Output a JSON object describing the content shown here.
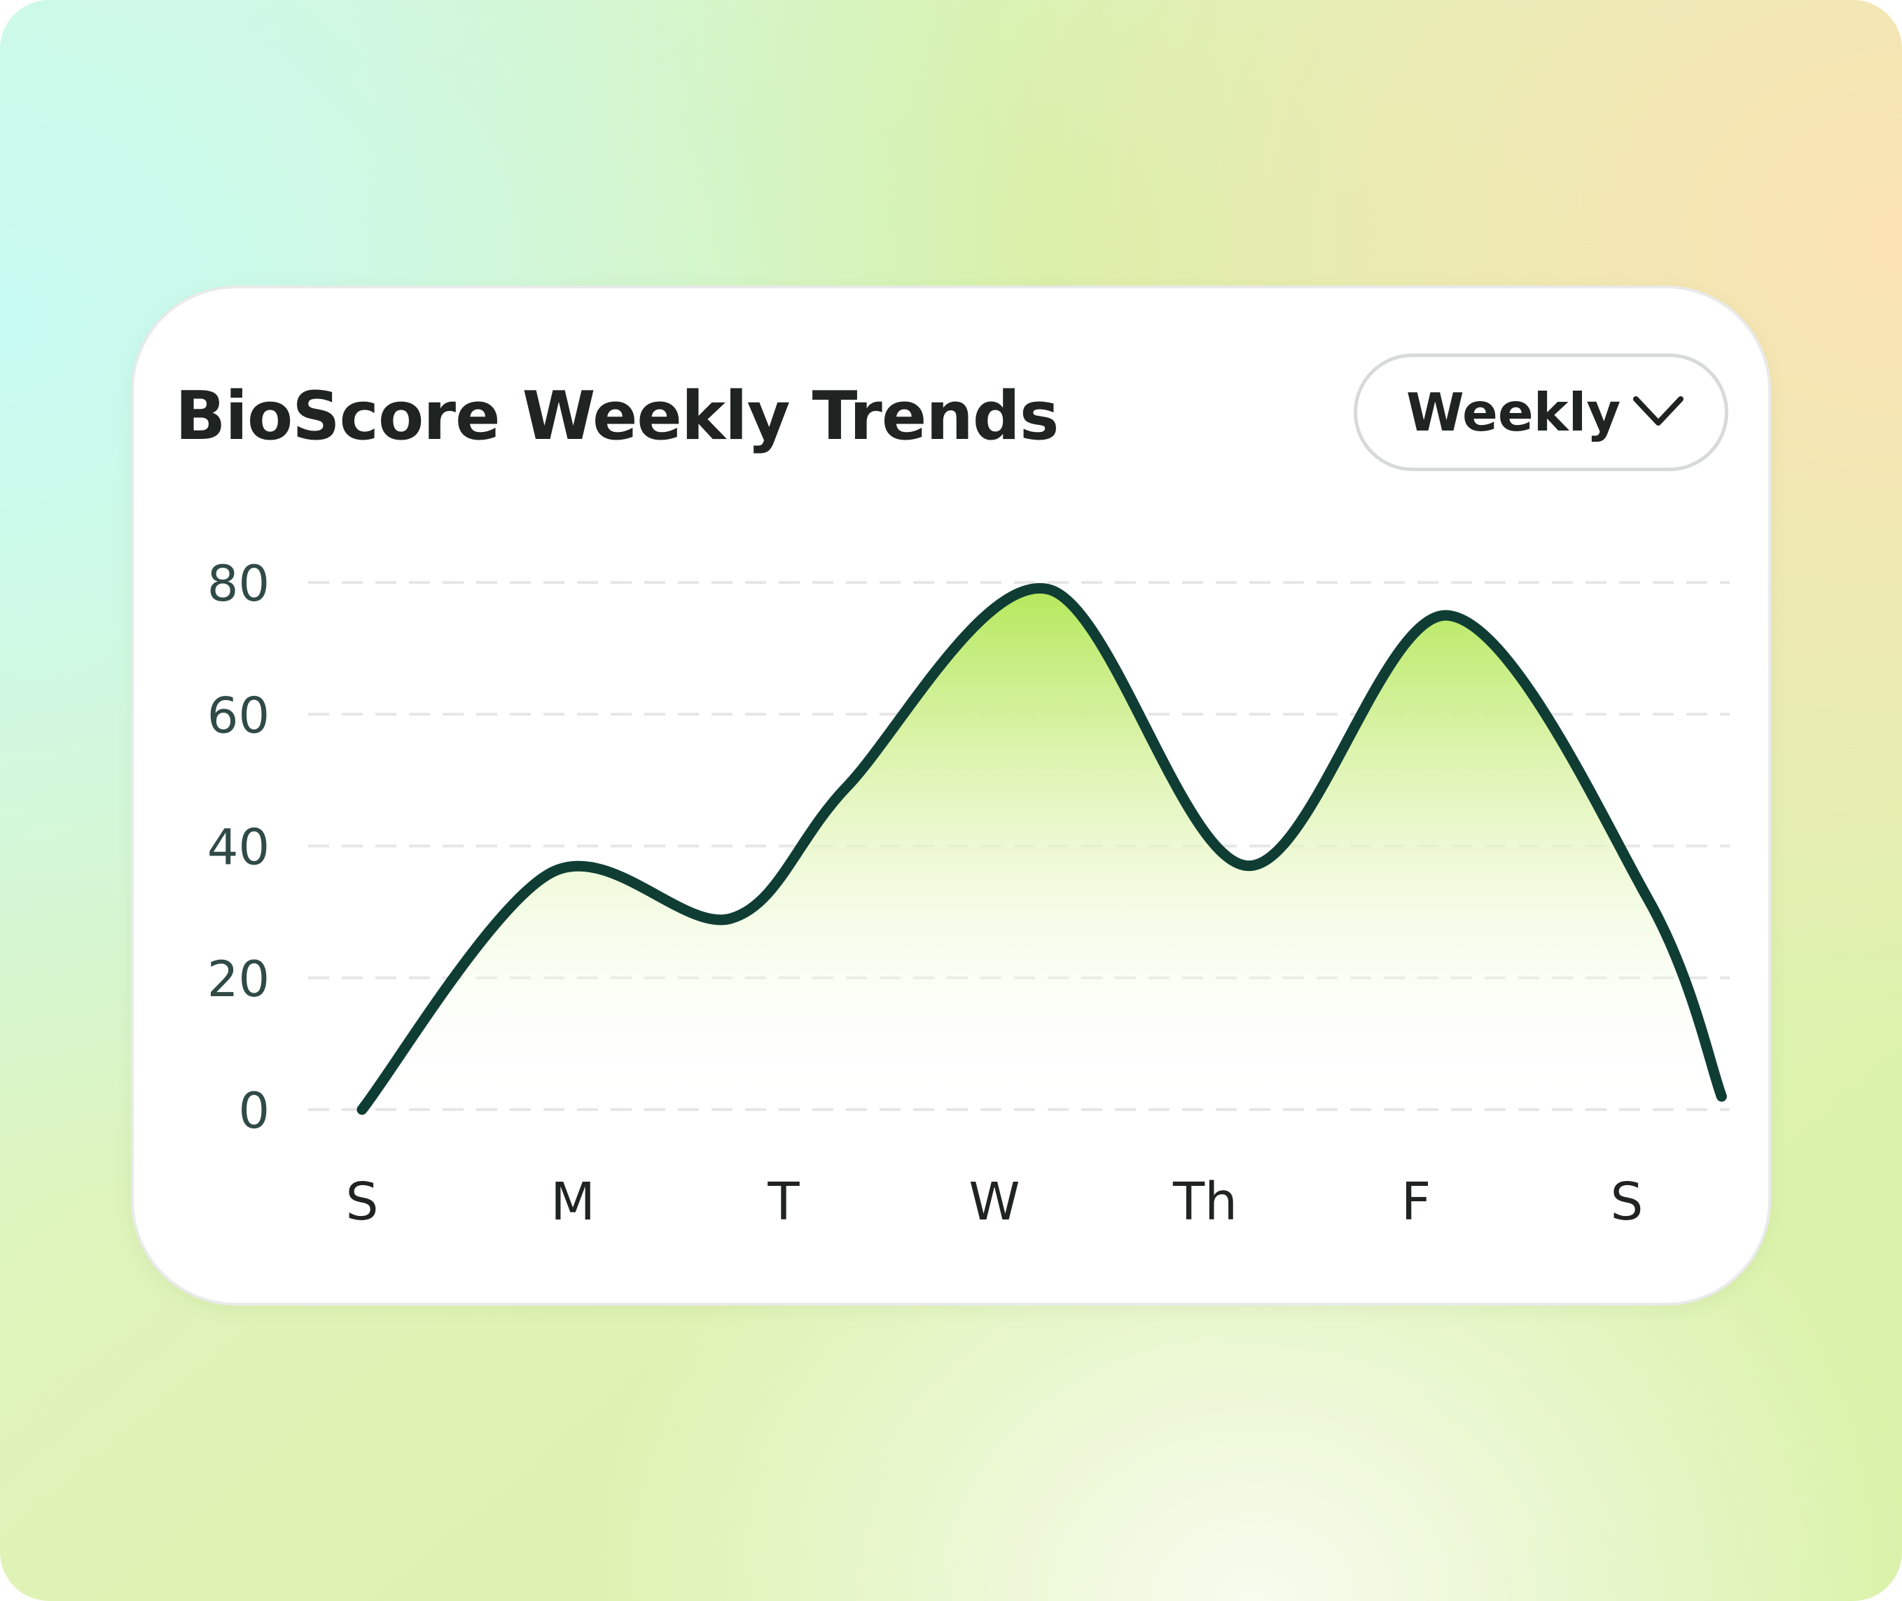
{
  "card": {
    "title": "BioScore Weekly Trends",
    "period_selector": {
      "selected": "Weekly",
      "icon": "chevron-down-icon"
    }
  },
  "colors": {
    "line": "#0f3d34",
    "fill_top": "#b5e85b",
    "grid": "#e6e6e6"
  },
  "chart_data": {
    "type": "area",
    "title": "",
    "xlabel": "",
    "ylabel": "",
    "categories": [
      "S",
      "M",
      "T",
      "W",
      "Th",
      "F",
      "S"
    ],
    "y_ticks": [
      "0",
      "20",
      "40",
      "60",
      "80"
    ],
    "ylim": [
      0,
      80
    ],
    "grid": true,
    "curve": [
      {
        "x": 0.0,
        "y": 0
      },
      {
        "x": 0.9,
        "y": 36
      },
      {
        "x": 1.75,
        "y": 29
      },
      {
        "x": 2.3,
        "y": 49
      },
      {
        "x": 3.25,
        "y": 79
      },
      {
        "x": 4.2,
        "y": 37
      },
      {
        "x": 5.15,
        "y": 75
      },
      {
        "x": 6.1,
        "y": 32
      },
      {
        "x": 6.45,
        "y": 2
      }
    ]
  }
}
